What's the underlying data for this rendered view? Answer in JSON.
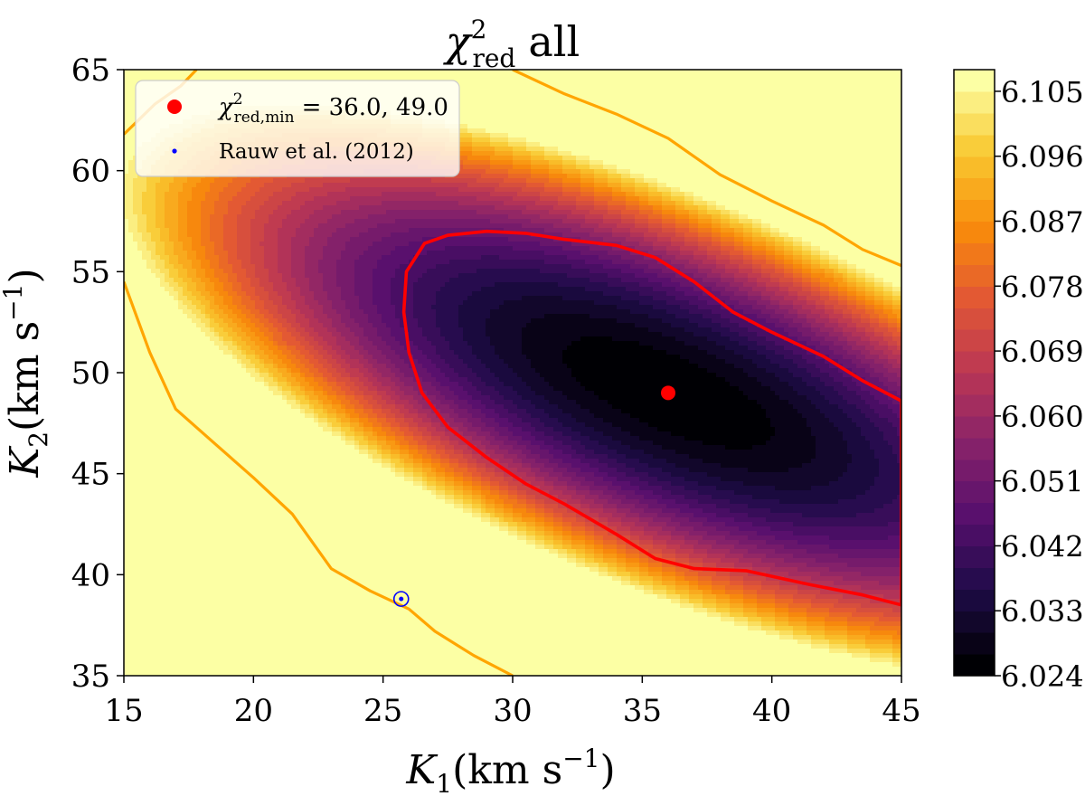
{
  "chart_data": {
    "type": "heatmap",
    "subtype": "filled-contour",
    "title": "χ²red all",
    "title_parts": {
      "symbol": "χ",
      "superscript": "2",
      "subscript": "red",
      "suffix": "all"
    },
    "xlabel": "K1(km s−1)",
    "ylabel": "K2(km s−1)",
    "xlabel_parts": {
      "symbol": "K",
      "subscript": "1",
      "unit": "(km s",
      "unit_exp": "−1",
      "unit_close": ")"
    },
    "ylabel_parts": {
      "symbol": "K",
      "subscript": "2",
      "unit": "(km s",
      "unit_exp": "−1",
      "unit_close": ")"
    },
    "xlim": [
      15,
      45
    ],
    "ylim": [
      35,
      65
    ],
    "xticks": [
      15,
      20,
      25,
      30,
      35,
      40,
      45
    ],
    "yticks": [
      35,
      40,
      45,
      50,
      55,
      60,
      65
    ],
    "colorbar": {
      "label": "",
      "range": [
        6.024,
        6.108
      ],
      "ticks": [
        "6.024",
        "6.033",
        "6.042",
        "6.051",
        "6.060",
        "6.069",
        "6.078",
        "6.087",
        "6.096",
        "6.105"
      ],
      "levels": 28,
      "colormap": "inferno"
    },
    "surface": {
      "minimum": {
        "x": 36.0,
        "y": 49.0,
        "value": 6.024
      },
      "basis_vectors": [
        [
          0.866,
          -0.5
        ],
        [
          0.5,
          0.866
        ]
      ],
      "scales": [
        13.5,
        5.2
      ],
      "max_value": 6.108
    },
    "contours": [
      {
        "name": "red-contour",
        "color": "#ff0000",
        "points": [
          [
            26.3,
            55.8
          ],
          [
            26.6,
            56.4
          ],
          [
            27.5,
            56.8
          ],
          [
            29,
            57
          ],
          [
            30.5,
            56.9
          ],
          [
            32,
            56.6
          ],
          [
            34,
            56.3
          ],
          [
            35.5,
            55.7
          ],
          [
            37,
            54.5
          ],
          [
            38.5,
            53
          ],
          [
            40,
            52
          ],
          [
            42,
            50.8
          ],
          [
            43.5,
            49.6
          ],
          [
            45,
            48.6
          ],
          [
            45,
            38.5
          ],
          [
            43.5,
            39
          ],
          [
            41.5,
            39.5
          ],
          [
            39,
            40.2
          ],
          [
            37,
            40.3
          ],
          [
            35.5,
            40.8
          ],
          [
            34,
            42
          ],
          [
            32,
            43.5
          ],
          [
            30.5,
            44.5
          ],
          [
            29,
            45.8
          ],
          [
            27.5,
            47.3
          ],
          [
            26.5,
            49
          ],
          [
            26,
            51
          ],
          [
            25.8,
            53
          ],
          [
            25.9,
            55
          ]
        ]
      },
      {
        "name": "orange-contour-lower",
        "color": "#ffa500",
        "points": [
          [
            15,
            54.5
          ],
          [
            16,
            51
          ],
          [
            17,
            48.2
          ],
          [
            18.5,
            46.5
          ],
          [
            20,
            44.8
          ],
          [
            21.5,
            43
          ],
          [
            23,
            40.3
          ],
          [
            24.5,
            39.2
          ],
          [
            26,
            38.3
          ],
          [
            27,
            37.2
          ],
          [
            28.5,
            36
          ],
          [
            30,
            35
          ]
        ]
      },
      {
        "name": "orange-contour-upper",
        "color": "#ffa500",
        "points": [
          [
            15,
            61.8
          ],
          [
            16.2,
            63.3
          ],
          [
            17.2,
            64.2
          ],
          [
            17.8,
            65
          ]
        ]
      },
      {
        "name": "orange-contour-right",
        "color": "#ffa500",
        "points": [
          [
            30,
            65
          ],
          [
            32,
            63.8
          ],
          [
            34,
            62.8
          ],
          [
            36,
            61.6
          ],
          [
            38,
            59.8
          ],
          [
            40,
            58.5
          ],
          [
            42,
            57.3
          ],
          [
            43.5,
            56.1
          ],
          [
            45,
            55.3
          ]
        ]
      }
    ],
    "series": [
      {
        "name": "χ²red,min = 36.0, 49.0",
        "legend_label": "= 36.0, 49.0",
        "color": "#ff0000",
        "marker": "filled-circle",
        "x": 36.0,
        "y": 49.0
      },
      {
        "name": "Rauw et al. (2012)",
        "legend_label": "Rauw et al. (2012)",
        "color": "#0000ff",
        "marker": "dot",
        "x": 25.7,
        "y": 38.8
      }
    ],
    "legend": {
      "location": "upper-left",
      "first_entry_parts": {
        "symbol": "χ",
        "superscript": "2",
        "subscript": "red,min",
        "rest": "= 36.0, 49.0"
      }
    }
  }
}
